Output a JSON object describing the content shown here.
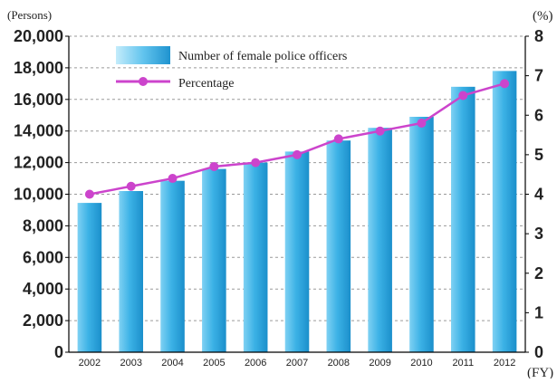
{
  "chart_data": {
    "type": "bar",
    "categories": [
      "2002",
      "2003",
      "2004",
      "2005",
      "2006",
      "2007",
      "2008",
      "2009",
      "2010",
      "2011",
      "2012"
    ],
    "series": [
      {
        "name": "Number of female police officers",
        "type": "bar",
        "axis": "left",
        "color": "#29A4DE",
        "values": [
          9450,
          10200,
          10850,
          11600,
          12000,
          12700,
          13400,
          14200,
          14900,
          16800,
          17800
        ]
      },
      {
        "name": "Percentage",
        "type": "line",
        "axis": "right",
        "color": "#CC44CC",
        "values": [
          4.0,
          4.2,
          4.4,
          4.7,
          4.8,
          5.0,
          5.4,
          5.6,
          5.8,
          6.5,
          6.8
        ]
      }
    ],
    "y_left": {
      "unit_label": "(Persons)",
      "ylim": [
        0,
        20000
      ],
      "ticks": [
        "0",
        "2,000",
        "4,000",
        "6,000",
        "8,000",
        "10,000",
        "12,000",
        "14,000",
        "16,000",
        "18,000",
        "20,000"
      ]
    },
    "y_right": {
      "unit_label": "(%)",
      "ylim": [
        0,
        8
      ],
      "ticks": [
        "0",
        "1",
        "2",
        "3",
        "4",
        "5",
        "6",
        "7",
        "8"
      ]
    },
    "x_unit_label": "(FY)",
    "grid": true,
    "legend": "top-left"
  }
}
